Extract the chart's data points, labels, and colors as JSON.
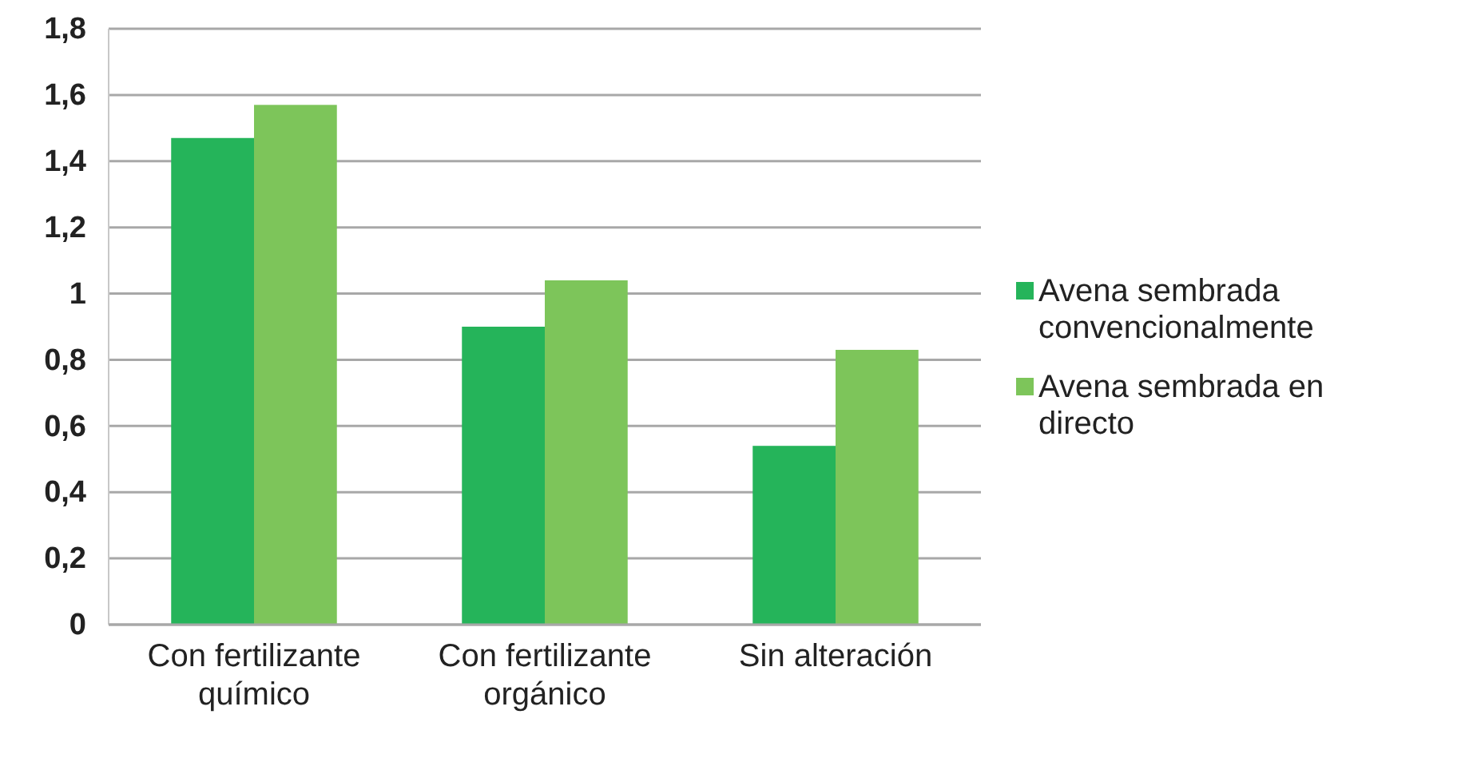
{
  "chart_data": {
    "type": "bar",
    "categories": [
      "Con fertilizante químico",
      "Con fertilizante orgánico",
      "Sin alteración"
    ],
    "series": [
      {
        "name": "Avena sembrada convencionalmente",
        "color": "#25b45a",
        "values": [
          1.47,
          0.9,
          0.54
        ]
      },
      {
        "name": "Avena sembrada en directo",
        "color": "#7dc55a",
        "values": [
          1.57,
          1.04,
          0.83
        ]
      }
    ],
    "ylim": [
      0,
      1.8
    ],
    "yticks": [
      0,
      {
        "value": 0.2,
        "label": "0,2"
      },
      {
        "value": 0.4,
        "label": "0,4"
      },
      {
        "value": 0.6,
        "label": "0,6"
      },
      {
        "value": 0.8,
        "label": "0,8"
      },
      1,
      {
        "value": 1.2,
        "label": "1,2"
      },
      {
        "value": 1.4,
        "label": "1,4"
      },
      {
        "value": 1.6,
        "label": "1,6"
      },
      {
        "value": 1.8,
        "label": "1,8"
      }
    ],
    "grid": "y",
    "legend": "right"
  }
}
